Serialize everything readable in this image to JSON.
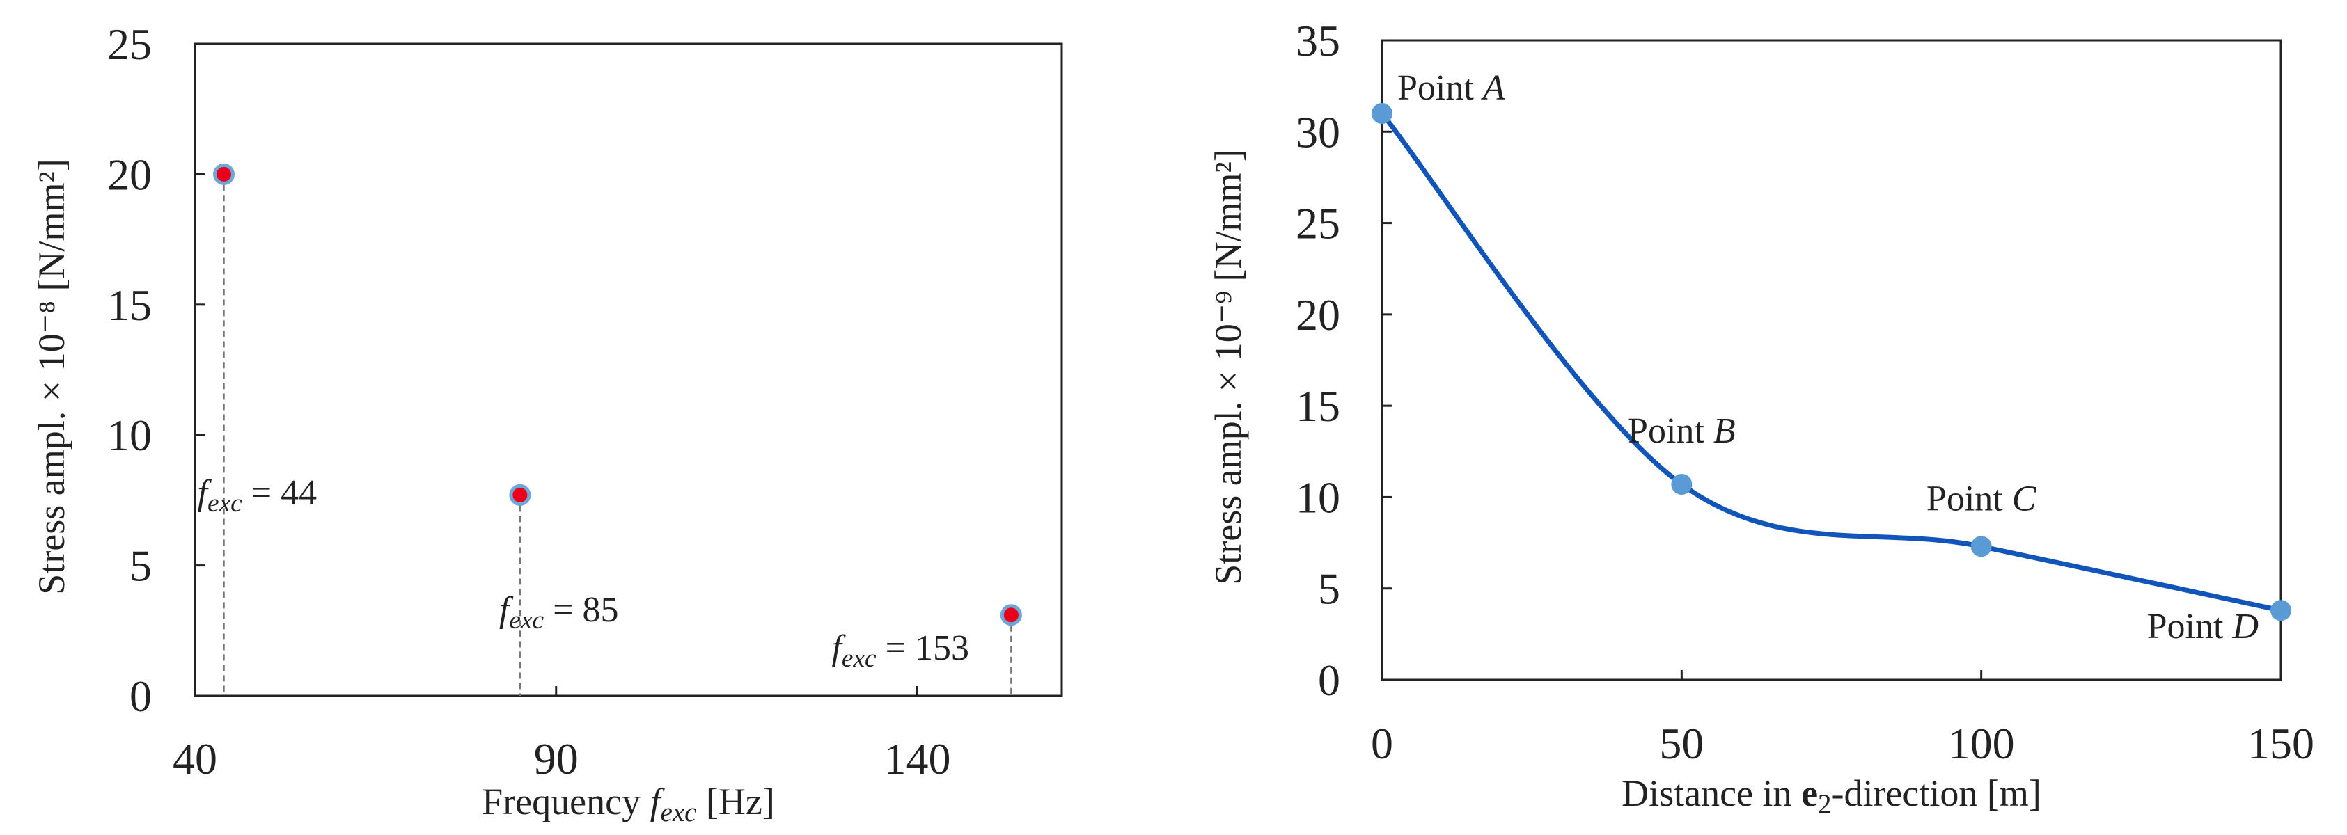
{
  "chart_data": [
    {
      "type": "scatter",
      "style": "stem",
      "xlabel": "Frequency f_exc [Hz]",
      "ylabel": "Stress ampl. × 10⁻⁸ [N/mm²]",
      "xlim": [
        40,
        160
      ],
      "ylim": [
        0,
        25
      ],
      "xticks": [
        40,
        90,
        140
      ],
      "yticks": [
        0,
        5,
        10,
        15,
        20,
        25
      ],
      "grid": false,
      "marker_color": "#e8001c",
      "marker_edge_color": "#6ea6d8",
      "stem_color": "#777777",
      "points": [
        {
          "x": 44,
          "y": 20,
          "label": "f_exc = 44"
        },
        {
          "x": 85,
          "y": 7.7,
          "label": "f_exc = 85"
        },
        {
          "x": 153,
          "y": 3.1,
          "label": "f_exc = 153"
        }
      ]
    },
    {
      "type": "line",
      "xlabel": "Distance in e₂-direction [m]",
      "ylabel": "Stress ampl. × 10⁻⁹ [N/mm²]",
      "xlim": [
        0,
        150
      ],
      "ylim": [
        0,
        35
      ],
      "xticks": [
        0,
        50,
        100,
        150
      ],
      "yticks": [
        0,
        5,
        10,
        15,
        20,
        25,
        30,
        35
      ],
      "grid": false,
      "line_color": "#1155bb",
      "marker_color": "#5b9bd5",
      "points": [
        {
          "x": 0,
          "y": 31,
          "label": "Point A"
        },
        {
          "x": 50,
          "y": 10.7,
          "label": "Point B"
        },
        {
          "x": 100,
          "y": 7.3,
          "label": "Point C"
        },
        {
          "x": 150,
          "y": 3.8,
          "label": "Point D"
        }
      ]
    }
  ]
}
